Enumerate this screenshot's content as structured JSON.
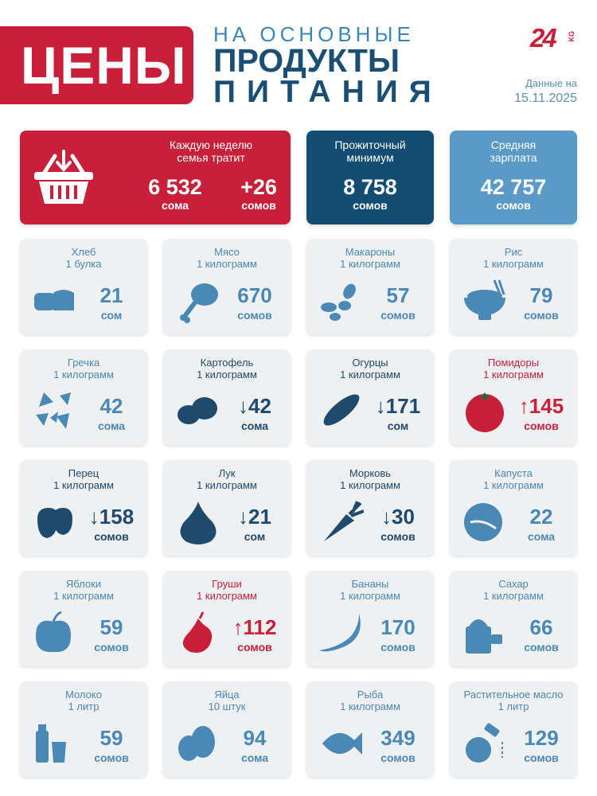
{
  "header": {
    "title": "ЦЕНЫ",
    "line1": "НА ОСНОВНЫЕ",
    "line2": "ПРОДУКТЫ",
    "line3": "ПИТАНИЯ",
    "logo_number": "24",
    "logo_kg": "KG",
    "date_label": "Данные на",
    "date_value": "15.11.2025"
  },
  "summary": {
    "weekly": {
      "label": "Каждую неделю\nсемья тратит",
      "value": "6 532",
      "unit": "сома",
      "change": "+26",
      "change_unit": "сомов",
      "icon": "basket-icon"
    },
    "minimum": {
      "label": "Прожиточный\nминимум",
      "value": "8 758",
      "unit": "сомов"
    },
    "salary": {
      "label": "Средняя\nзарплата",
      "value": "42 757",
      "unit": "сомов"
    }
  },
  "colors": {
    "red": "#c8203a",
    "navy": "#134d73",
    "light_blue": "#5b9ac6",
    "blue_text": "#4a88b6",
    "dark_text": "#1e4a6e"
  },
  "products": [
    {
      "name": "Хлеб",
      "unit": "1 булка",
      "value": "21",
      "currency": "сом",
      "trend": "none",
      "icon": "bread-icon"
    },
    {
      "name": "Мясо",
      "unit": "1 килограмм",
      "value": "670",
      "currency": "сомов",
      "trend": "none",
      "icon": "meat-icon"
    },
    {
      "name": "Макароны",
      "unit": "1 килограмм",
      "value": "57",
      "currency": "сомов",
      "trend": "none",
      "icon": "pasta-icon"
    },
    {
      "name": "Рис",
      "unit": "1 килограмм",
      "value": "79",
      "currency": "сомов",
      "trend": "none",
      "icon": "rice-bowl-icon"
    },
    {
      "name": "Гречка",
      "unit": "1 килограмм",
      "value": "42",
      "currency": "сома",
      "trend": "none",
      "icon": "buckwheat-icon"
    },
    {
      "name": "Картофель",
      "unit": "1 килограмм",
      "value": "42",
      "arrow": "↓",
      "currency": "сома",
      "trend": "down",
      "icon": "potato-icon"
    },
    {
      "name": "Огурцы",
      "unit": "1 килограмм",
      "value": "171",
      "arrow": "↓",
      "currency": "сом",
      "trend": "down",
      "icon": "cucumber-icon"
    },
    {
      "name": "Помидоры",
      "unit": "1 килограмм",
      "value": "145",
      "arrow": "↑",
      "currency": "сомов",
      "trend": "up",
      "icon": "tomato-icon"
    },
    {
      "name": "Перец",
      "unit": "1 килограмм",
      "value": "158",
      "arrow": "↓",
      "currency": "сомов",
      "trend": "down",
      "icon": "pepper-icon"
    },
    {
      "name": "Лук",
      "unit": "1 килограмм",
      "value": "21",
      "arrow": "↓",
      "currency": "сом",
      "trend": "down",
      "icon": "onion-icon"
    },
    {
      "name": "Морковь",
      "unit": "1 килограмм",
      "value": "30",
      "arrow": "↓",
      "currency": "сомов",
      "trend": "down",
      "icon": "carrot-icon"
    },
    {
      "name": "Капуста",
      "unit": "1 килограмм",
      "value": "22",
      "currency": "сома",
      "trend": "none",
      "icon": "cabbage-icon"
    },
    {
      "name": "Яблоки",
      "unit": "1 килограмм",
      "value": "59",
      "currency": "сомов",
      "trend": "none",
      "icon": "apple-icon"
    },
    {
      "name": "Груши",
      "unit": "1 килограмм",
      "value": "112",
      "arrow": "↑",
      "currency": "сомов",
      "trend": "up",
      "icon": "pear-icon"
    },
    {
      "name": "Бананы",
      "unit": "1 килограмм",
      "value": "170",
      "currency": "сомов",
      "trend": "none",
      "icon": "banana-icon"
    },
    {
      "name": "Сахар",
      "unit": "1 килограмм",
      "value": "66",
      "currency": "сомов",
      "trend": "none",
      "icon": "sugar-icon"
    },
    {
      "name": "Молоко",
      "unit": "1 литр",
      "value": "59",
      "currency": "сомов",
      "trend": "none",
      "icon": "milk-icon"
    },
    {
      "name": "Яйца",
      "unit": "10 штук",
      "value": "94",
      "currency": "сома",
      "trend": "none",
      "icon": "eggs-icon"
    },
    {
      "name": "Рыба",
      "unit": "1 килограмм",
      "value": "349",
      "currency": "сомов",
      "trend": "none",
      "icon": "fish-icon"
    },
    {
      "name": "Растительное масло",
      "unit": "1 литр",
      "value": "129",
      "currency": "сомов",
      "trend": "none",
      "icon": "oil-bottle-icon"
    }
  ]
}
